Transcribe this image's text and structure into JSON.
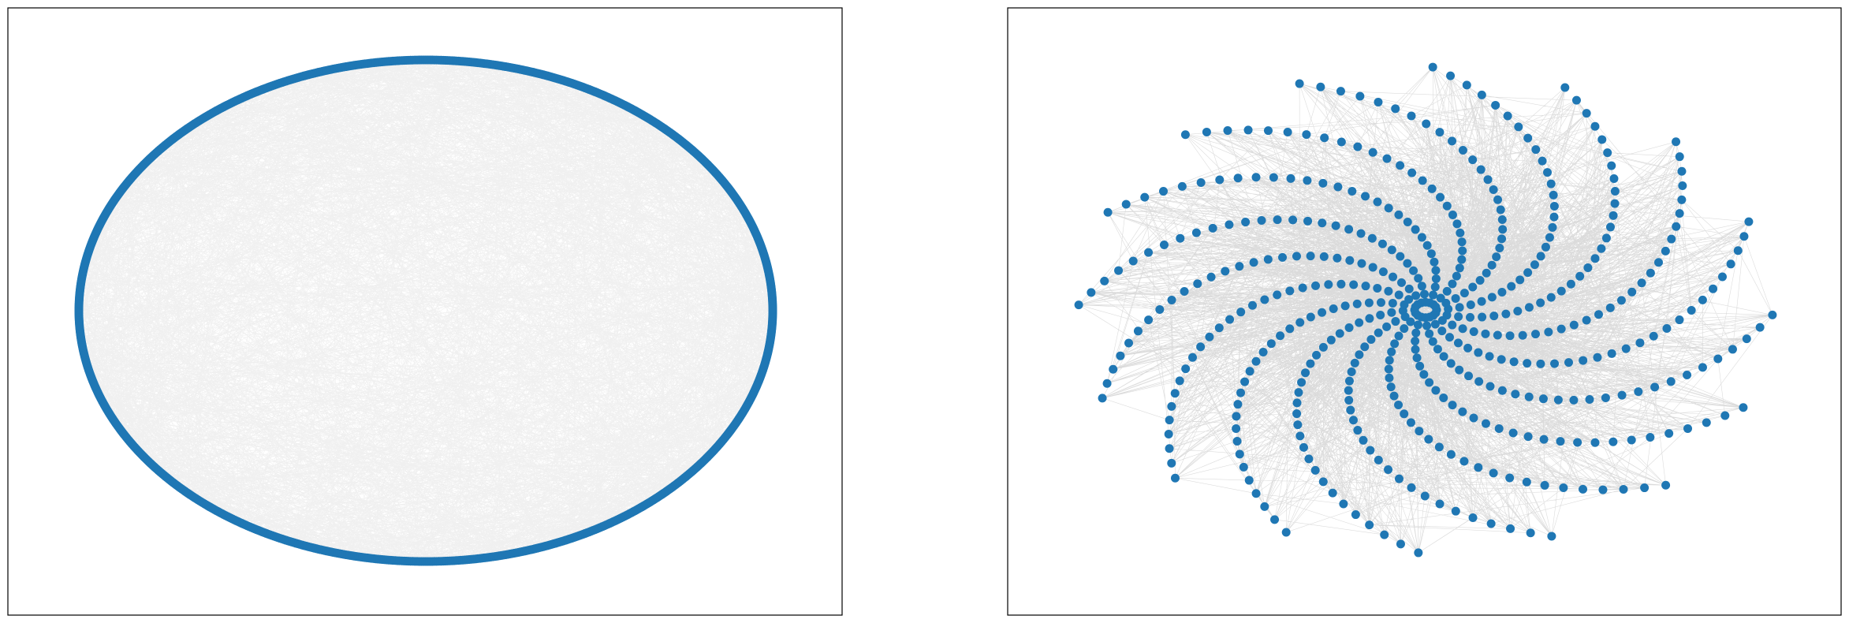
{
  "figure": {
    "layout": "1x2 subplots",
    "axes_ticks": "hidden"
  },
  "colors": {
    "node": "#1f77b4",
    "edge": "#000000",
    "frame": "#000000",
    "background": "#ffffff"
  },
  "panels": [
    {
      "id": "circular",
      "graph_layout": "circular",
      "node_count": 1000,
      "edge_style": "dense gray chords"
    },
    {
      "id": "spiral",
      "graph_layout": "spiral",
      "arm_count": 16,
      "nodes_per_arm": 30,
      "edge_style": "dense black chords"
    }
  ]
}
